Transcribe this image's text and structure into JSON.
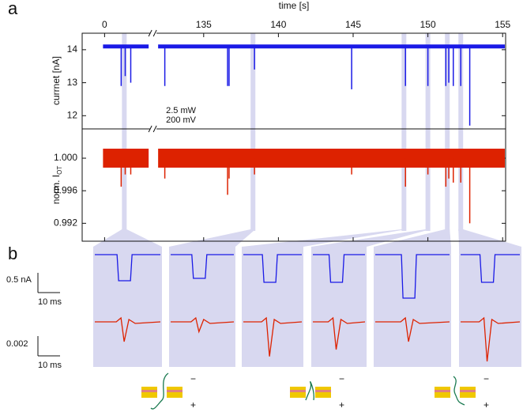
{
  "chart_data": [
    {
      "type": "event-trace",
      "x_label": "time [s]",
      "y_label": "currnet [nA]",
      "xlim": [
        -1.5,
        155.2
      ],
      "x_break": [
        3,
        131.9
      ],
      "xticks": [
        0,
        135,
        140,
        145,
        150,
        155
      ],
      "ylim": [
        11.6,
        14.5
      ],
      "yticks": [
        12,
        13,
        14
      ],
      "highlights": [
        1.32,
        138.3,
        148.4,
        150.0,
        151.3,
        152.2
      ],
      "series": [
        {
          "name": "200 mV",
          "color": "#1a1ae6",
          "baseline": 14.1,
          "x": [
            1.11,
            1.38,
            1.75,
            132.4,
            136.6,
            136.7,
            138.4,
            144.9,
            148.5,
            150.0,
            151.2,
            151.4,
            151.7,
            152.2,
            152.8
          ],
          "values": [
            12.9,
            13.2,
            13.0,
            12.9,
            12.9,
            12.9,
            13.4,
            12.8,
            12.9,
            12.9,
            12.9,
            13.0,
            12.9,
            12.9,
            11.7
          ]
        }
      ]
    },
    {
      "type": "event-trace",
      "y_label": "norm. I",
      "y_label_subscript": "OT",
      "xlim": [
        -1.5,
        155.2
      ],
      "x_break": [
        3,
        131.9
      ],
      "ylim": [
        0.9898,
        1.0036
      ],
      "yticks": [
        {
          "value": 1.0,
          "label": "1.000"
        },
        0.996,
        0.992
      ],
      "series": [
        {
          "name": "2.5 mW",
          "color": "#dd2200",
          "baseline": 1.0,
          "x": [
            1.11,
            1.38,
            1.75,
            132.4,
            136.6,
            136.7,
            138.4,
            144.9,
            148.5,
            150.0,
            151.2,
            151.4,
            151.7,
            152.2,
            152.8
          ],
          "values": [
            0.9965,
            0.998,
            0.998,
            0.9975,
            0.9955,
            0.9975,
            0.998,
            0.998,
            0.9965,
            0.998,
            0.9965,
            0.9975,
            0.997,
            0.997,
            0.992
          ]
        }
      ]
    }
  ],
  "panel_a_label": "a",
  "panel_b": {
    "label": "b",
    "current_scale": {
      "value": 0.5,
      "label": "0.5 nA"
    },
    "current_time_scale": {
      "value": 10,
      "label": "10 ms"
    },
    "ot_scale": 0.002,
    "ot_time_scale": {
      "value": 10,
      "label": "10 ms"
    },
    "current_dips": [
      0.66,
      0.6,
      0.7,
      0.7,
      1.1,
      0.7
    ],
    "ot_dips": [
      0.002,
      0.001,
      0.0035,
      0.0028,
      0.002,
      0.004
    ],
    "pore_diagrams": [
      {
        "minus": "−",
        "plus": "+"
      },
      {
        "minus": "−",
        "plus": "+"
      },
      {
        "minus": "−",
        "plus": "+"
      }
    ]
  }
}
